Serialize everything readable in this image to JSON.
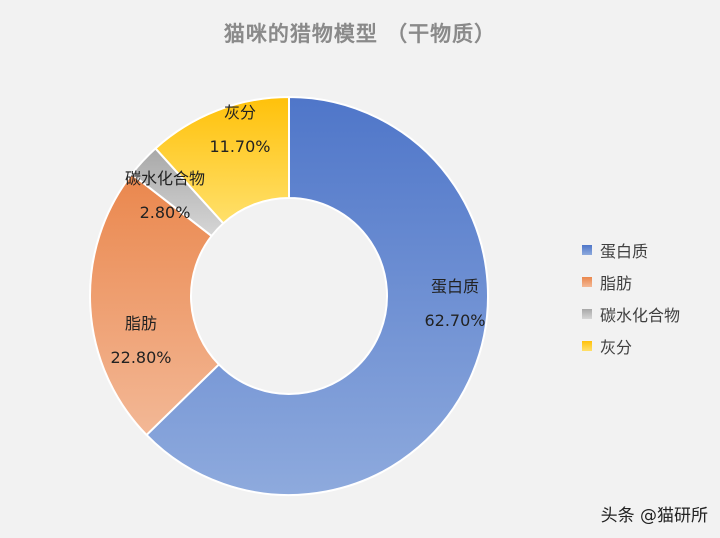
{
  "watermark": "头条 @猫研所",
  "chart_data": {
    "type": "pie",
    "donut": true,
    "title": "猫咪的猎物模型 （干物质）",
    "legend_position": "right",
    "start_angle_deg": 0,
    "direction": "clockwise",
    "slices": [
      {
        "label": "蛋白质",
        "value": 62.7,
        "display_value": "62.70%",
        "color_light": "#8eaadd",
        "color_dark": "#4f76c9"
      },
      {
        "label": "脂肪",
        "value": 22.8,
        "display_value": "22.80%",
        "color_light": "#f3b896",
        "color_dark": "#ea874d"
      },
      {
        "label": "碳水化合物",
        "value": 2.8,
        "display_value": "2.80%",
        "color_light": "#d6d6d6",
        "color_dark": "#a8a8a8"
      },
      {
        "label": "灰分",
        "value": 11.7,
        "display_value": "11.70%",
        "color_light": "#ffe06b",
        "color_dark": "#ffc10a"
      }
    ]
  }
}
